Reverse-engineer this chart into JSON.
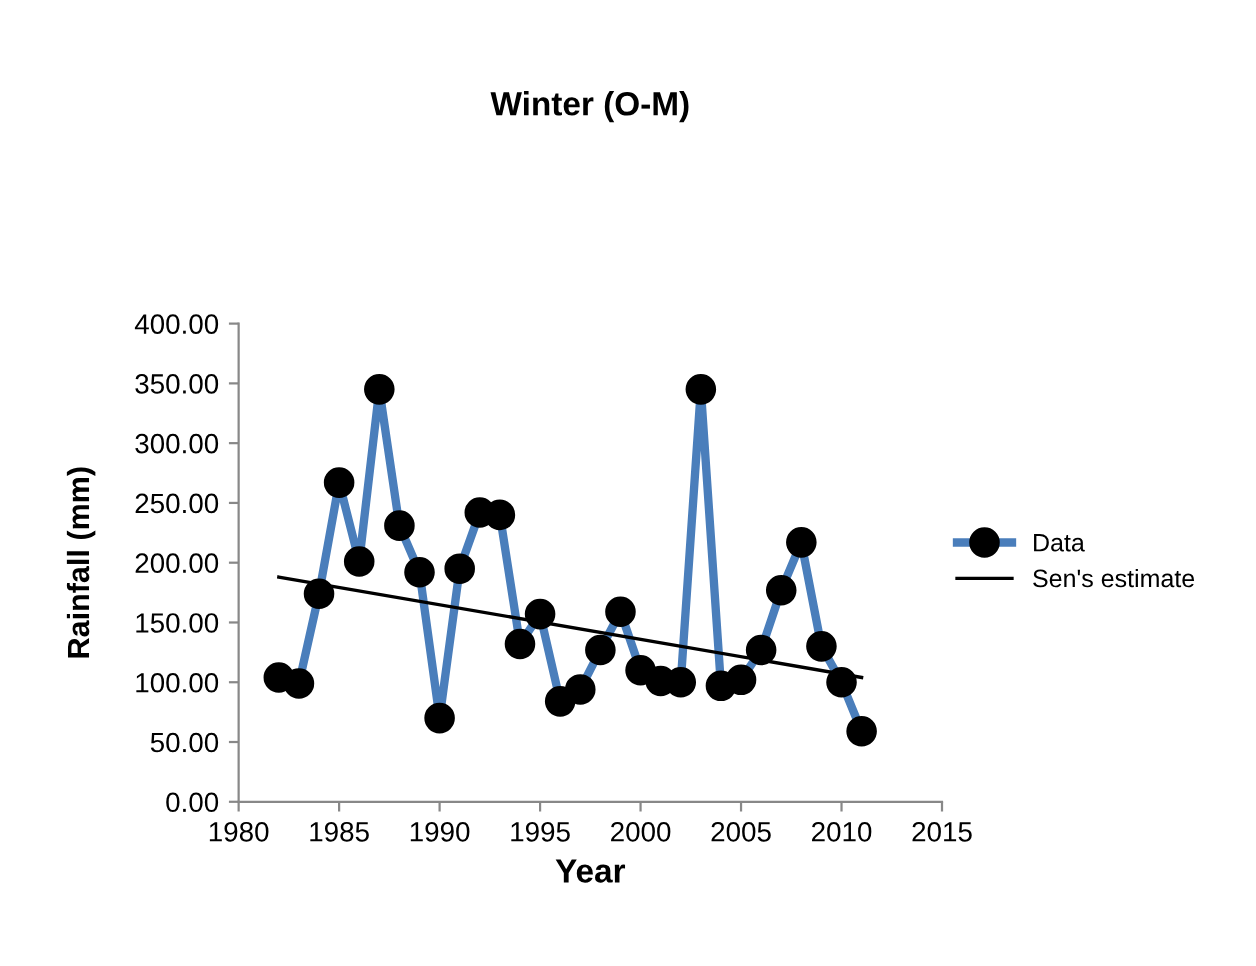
{
  "chart_data": {
    "type": "line",
    "title": "Winter (O-M)",
    "xlabel": "Year",
    "ylabel": "Rainfall (mm)",
    "series": [
      {
        "name": "Data",
        "color": "#4a7ebb",
        "marker": "circle",
        "x": [
          1982,
          1983,
          1984,
          1985,
          1986,
          1987,
          1988,
          1989,
          1990,
          1991,
          1992,
          1993,
          1994,
          1995,
          1996,
          1997,
          1998,
          1999,
          2000,
          2001,
          2002,
          2003,
          2004,
          2005,
          2006,
          2007,
          2008,
          2009,
          2010,
          2011
        ],
        "values": [
          104,
          99,
          174,
          267,
          201,
          345,
          231,
          192,
          70,
          195,
          242,
          240,
          132,
          157,
          84,
          94,
          127,
          159,
          110,
          101,
          100,
          345,
          97,
          102,
          127,
          177,
          217,
          130,
          100,
          59
        ]
      },
      {
        "name": "Sen's estimate",
        "color": "#000000",
        "marker": "none",
        "x": [
          1982,
          2011
        ],
        "values": [
          188,
          104
        ]
      }
    ],
    "xlim": [
      1980,
      2015
    ],
    "xticks": [
      1980,
      1985,
      1990,
      1995,
      2000,
      2005,
      2010,
      2015
    ],
    "ylim": [
      0,
      400
    ],
    "yticks": [
      {
        "value": 0,
        "label": "0.00"
      },
      {
        "value": 50,
        "label": "50.00"
      },
      {
        "value": 100,
        "label": "100.00"
      },
      {
        "value": 150,
        "label": "150.00"
      },
      {
        "value": 200,
        "label": "200.00"
      },
      {
        "value": 250,
        "label": "250.00"
      },
      {
        "value": 300,
        "label": "300.00"
      },
      {
        "value": 350,
        "label": "350.00"
      },
      {
        "value": 400,
        "label": "400.00"
      }
    ],
    "grid": false,
    "legend": "right"
  }
}
